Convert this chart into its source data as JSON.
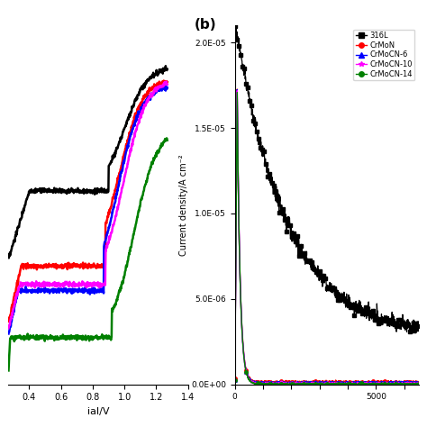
{
  "title_b": "(b)",
  "panel_a_xlabel": "ial/V",
  "panel_b_ylabel": "Current density/A cm⁻²",
  "panel_b_xlim": [
    0,
    6500
  ],
  "panel_b_ylim": [
    0,
    2.1e-05
  ],
  "panel_b_yticks": [
    0.0,
    5e-06,
    1e-05,
    1.5e-05,
    2e-05
  ],
  "panel_b_ytick_labels": [
    "0.0E+00",
    "5.0E-06",
    "1.0E-05",
    "1.5E-05",
    "2.0E-05"
  ],
  "panel_b_xticks": [
    0,
    1000,
    2000,
    3000,
    4000,
    5000,
    6000
  ],
  "panel_a_xlim": [
    0.27,
    1.4
  ],
  "panel_a_xticks": [
    0.4,
    0.6,
    0.8,
    1.0,
    1.2,
    1.4
  ],
  "colors": {
    "316L": "#000000",
    "CrMoN": "#ff0000",
    "CrMoCN-6": "#0000ff",
    "CrMoCN-10": "#ff00ff",
    "CrMoCN-14": "#008000"
  },
  "legend_labels": [
    "316L",
    "CrMoN",
    "CrMoCN-6",
    "CrMoCN-10",
    "CrMoCN-14"
  ],
  "legend_markers": [
    "s",
    "o",
    "^",
    "*",
    "o"
  ],
  "background_color": "#ffffff"
}
